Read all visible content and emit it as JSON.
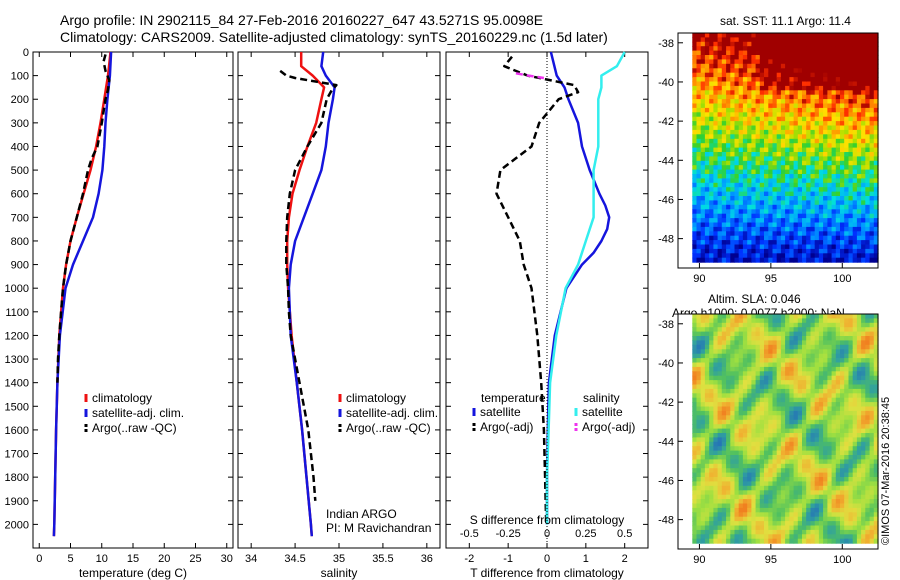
{
  "header": {
    "line1": "Argo profile: IN 2902115_84 27-Feb-2016 20160227_647 43.5271S 95.0098E",
    "line2": "Climatology: CARS2009. Satellite-adjusted climatology: synTS_20160229.nc (1.5d later)"
  },
  "float_info": {
    "line1": "Indian ARGO",
    "line2": "PI: M Ravichandran"
  },
  "stamp": "©IMOS 07-Mar-2016 20:38:45",
  "colors": {
    "climatology": "#ee1111",
    "satellite": "#1515dd",
    "argo": "#000000",
    "sal_satellite": "#33eeee",
    "sal_argo": "#ee33ee"
  },
  "chart_data": [
    {
      "type": "line",
      "xlabel": "temperature (deg C)",
      "xlim": [
        -1,
        31
      ],
      "ylim": [
        2100,
        0
      ],
      "xticks": [
        "0",
        "5",
        "10",
        "15",
        "20",
        "25",
        "30"
      ],
      "yticks": [
        "0",
        "100",
        "200",
        "300",
        "400",
        "500",
        "600",
        "700",
        "800",
        "900",
        "1000",
        "1100",
        "1200",
        "1300",
        "1400",
        "1500",
        "1600",
        "1700",
        "1800",
        "1900",
        "2000"
      ],
      "legend": [
        "climatology",
        "satellite-adj. clim.",
        "Argo(..raw -QC)"
      ],
      "series": [
        {
          "name": "climatology",
          "depth": [
            0,
            50,
            100,
            200,
            300,
            400,
            500,
            600,
            700,
            800,
            900,
            1000,
            1200,
            1400,
            1600,
            1800,
            2000,
            2050
          ],
          "values": [
            11.4,
            11.2,
            11.0,
            10.4,
            9.8,
            9.1,
            8.2,
            7.1,
            6.0,
            5.0,
            4.3,
            3.8,
            3.2,
            2.9,
            2.7,
            2.55,
            2.4,
            2.35
          ]
        },
        {
          "name": "satellite-adj. clim.",
          "depth": [
            0,
            50,
            100,
            200,
            300,
            400,
            500,
            600,
            700,
            800,
            900,
            1000,
            1200,
            1400,
            1600,
            1800,
            2000,
            2050
          ],
          "values": [
            11.5,
            11.4,
            11.3,
            10.9,
            10.6,
            10.4,
            10.1,
            9.5,
            8.6,
            7.0,
            5.4,
            4.2,
            3.3,
            2.9,
            2.7,
            2.55,
            2.4,
            2.35
          ]
        },
        {
          "name": "Argo(..raw -QC)",
          "depth": [
            10,
            40,
            80,
            120,
            160,
            200,
            300,
            400,
            450,
            500,
            550,
            600,
            700,
            800,
            900,
            1000,
            1100,
            1200,
            1300,
            1400
          ],
          "values": [
            10.6,
            10.3,
            10.6,
            11.2,
            11.0,
            10.6,
            10.0,
            9.3,
            8.4,
            7.8,
            7.4,
            7.0,
            6.0,
            5.0,
            4.3,
            3.8,
            3.5,
            3.2,
            3.0,
            2.9
          ]
        }
      ]
    },
    {
      "type": "line",
      "xlabel": "salinity",
      "xlim": [
        33.85,
        36.15
      ],
      "ylim": [
        2100,
        0
      ],
      "xticks": [
        "34",
        "34.5",
        "35",
        "35.5",
        "36"
      ],
      "legend": [
        "climatology",
        "satellite-adj. clim.",
        "Argo(..raw -QC)"
      ],
      "series": [
        {
          "name": "climatology",
          "depth": [
            0,
            60,
            100,
            150,
            200,
            300,
            400,
            500,
            600,
            700,
            800,
            900,
            1000,
            1200,
            1400,
            1600,
            1800,
            2000,
            2050
          ],
          "values": [
            34.57,
            34.57,
            34.7,
            34.83,
            34.8,
            34.74,
            34.64,
            34.55,
            34.47,
            34.43,
            34.41,
            34.41,
            34.42,
            34.46,
            34.52,
            34.58,
            34.63,
            34.68,
            34.69
          ]
        },
        {
          "name": "satellite-adj. clim.",
          "depth": [
            0,
            60,
            100,
            150,
            200,
            300,
            400,
            500,
            600,
            700,
            800,
            900,
            1000,
            1200,
            1400,
            1600,
            1800,
            2000,
            2050
          ],
          "values": [
            34.82,
            34.8,
            34.85,
            34.95,
            34.93,
            34.88,
            34.85,
            34.8,
            34.7,
            34.6,
            34.5,
            34.45,
            34.43,
            34.45,
            34.52,
            34.58,
            34.63,
            34.68,
            34.69
          ]
        },
        {
          "name": "Argo(..raw -QC)",
          "depth": [
            80,
            100,
            110,
            140,
            160,
            200,
            300,
            400,
            500,
            600,
            700,
            800,
            900,
            1000,
            1100,
            1200,
            1300,
            1400,
            1500,
            1600,
            1700,
            1800,
            1900
          ],
          "values": [
            34.33,
            34.4,
            34.5,
            34.97,
            34.92,
            34.86,
            34.8,
            34.64,
            34.5,
            34.44,
            34.41,
            34.4,
            34.4,
            34.42,
            34.43,
            34.45,
            34.5,
            34.55,
            34.6,
            34.65,
            34.68,
            34.71,
            34.73
          ]
        }
      ]
    },
    {
      "type": "line",
      "xlabel": "T difference from climatology",
      "xlabel2": "S difference from climatology",
      "xlim": [
        -2.6,
        2.6
      ],
      "ylim": [
        2100,
        0
      ],
      "xticks": [
        "-2",
        "-1",
        "0",
        "1",
        "2"
      ],
      "xticks2": [
        "-0.5",
        "-0.25",
        "0",
        "0.25",
        "0.5"
      ],
      "legend_headers": [
        "temperature",
        "salinity"
      ],
      "legend": [
        "satellite",
        "Argo(-adj)",
        "satellite",
        "Argo(-adj)"
      ],
      "series": [
        {
          "name": "satellite",
          "group": "temperature",
          "depth": [
            0,
            100,
            150,
            200,
            300,
            400,
            500,
            600,
            650,
            700,
            750,
            800,
            850,
            900,
            1000,
            1200,
            1400,
            1600,
            1800,
            2000
          ],
          "values": [
            0.1,
            0.25,
            0.45,
            0.55,
            0.8,
            0.9,
            1.1,
            1.35,
            1.5,
            1.6,
            1.55,
            1.4,
            1.2,
            0.9,
            0.5,
            0.2,
            0.05,
            0.02,
            0.0,
            0.0
          ]
        },
        {
          "name": "Argo(-adj)",
          "group": "temperature",
          "depth": [
            20,
            60,
            100,
            140,
            170,
            200,
            300,
            400,
            450,
            500,
            600,
            700,
            800,
            900,
            1000,
            1200,
            1400,
            1600,
            1800,
            2000
          ],
          "values": [
            -0.9,
            -1.1,
            -0.5,
            0.7,
            0.8,
            0.3,
            -0.2,
            -0.4,
            -0.8,
            -1.2,
            -1.3,
            -1.0,
            -0.7,
            -0.6,
            -0.4,
            -0.25,
            -0.15,
            -0.08,
            -0.05,
            -0.02
          ]
        },
        {
          "name": "satellite",
          "group": "salinity",
          "depth": [
            0,
            60,
            100,
            150,
            200,
            300,
            400,
            500,
            600,
            700,
            800,
            900,
            1000,
            1200,
            1400,
            1600,
            1800,
            2000
          ],
          "values": [
            0.5,
            0.45,
            0.35,
            0.35,
            0.33,
            0.33,
            0.33,
            0.3,
            0.3,
            0.3,
            0.25,
            0.2,
            0.12,
            0.06,
            0.02,
            0.01,
            0.0,
            0.0
          ]
        },
        {
          "name": "Argo(-adj)",
          "group": "salinity",
          "depth": [
            90,
            100,
            110
          ],
          "values": [
            -0.2,
            -0.12,
            -0.02
          ]
        }
      ]
    },
    {
      "type": "heatmap",
      "title": "sat. SST: 11.1 Argo: 11.4",
      "xlim": [
        88.5,
        102.5
      ],
      "ylim": [
        -49.5,
        -37.5
      ],
      "xticks": [
        "90",
        "95",
        "100"
      ],
      "yticks": [
        "-38",
        "-40",
        "-42",
        "-44",
        "-46",
        "-48"
      ]
    },
    {
      "type": "heatmap",
      "title": "Altim. SLA: 0.046",
      "subtitle": "Argo h1000: 0.0077 h2000: NaN",
      "xlim": [
        88.5,
        102.5
      ],
      "ylim": [
        -49.5,
        -37.5
      ],
      "xticks": [
        "90",
        "95",
        "100"
      ],
      "yticks": [
        "-38",
        "-40",
        "-42",
        "-44",
        "-46",
        "-48"
      ]
    }
  ]
}
